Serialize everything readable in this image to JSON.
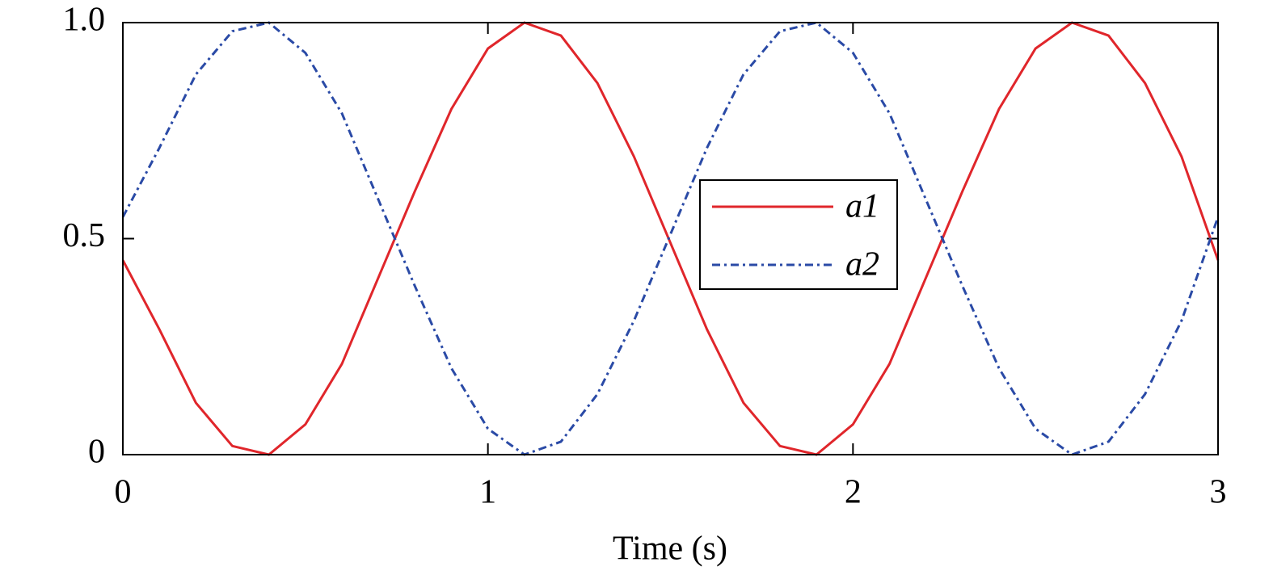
{
  "chart_data": {
    "type": "line",
    "x_label": "Time (s)",
    "x": [
      0,
      0.1,
      0.2,
      0.3,
      0.4,
      0.5,
      0.6,
      0.7,
      0.8,
      0.9,
      1.0,
      1.1,
      1.2,
      1.3,
      1.4,
      1.5,
      1.6,
      1.7,
      1.8,
      1.9,
      2.0,
      2.1,
      2.2,
      2.3,
      2.4,
      2.5,
      2.6,
      2.7,
      2.8,
      2.9,
      3.0
    ],
    "series": [
      {
        "name": "a1",
        "color": "#e0262b",
        "style": "solid",
        "values": [
          0.45,
          0.29,
          0.12,
          0.02,
          0.0,
          0.07,
          0.21,
          0.41,
          0.61,
          0.8,
          0.94,
          1.0,
          0.97,
          0.86,
          0.69,
          0.49,
          0.29,
          0.12,
          0.02,
          0.0,
          0.07,
          0.21,
          0.41,
          0.61,
          0.8,
          0.94,
          1.0,
          0.97,
          0.86,
          0.69,
          0.45
        ]
      },
      {
        "name": "a2",
        "color": "#2a4aa6",
        "style": "dash-dot",
        "values": [
          0.55,
          0.71,
          0.88,
          0.98,
          1.0,
          0.93,
          0.79,
          0.59,
          0.39,
          0.2,
          0.06,
          0.0,
          0.03,
          0.14,
          0.31,
          0.51,
          0.71,
          0.88,
          0.98,
          1.0,
          0.93,
          0.79,
          0.59,
          0.39,
          0.2,
          0.06,
          0.0,
          0.03,
          0.14,
          0.31,
          0.55
        ]
      }
    ],
    "xlim": [
      0,
      3
    ],
    "xticks": [
      0,
      1,
      2,
      3
    ],
    "ylim": [
      0,
      1
    ],
    "yticks": [
      0,
      0.5,
      {
        "value": 1,
        "label": "1.0"
      }
    ],
    "grid": false,
    "legend": "center-right"
  }
}
